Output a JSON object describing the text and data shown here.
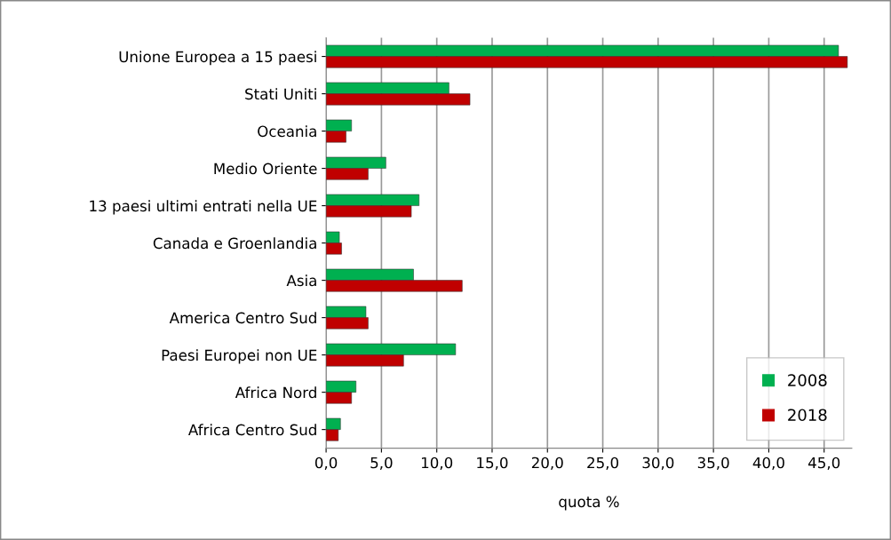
{
  "chart_data": {
    "type": "bar",
    "orientation": "horizontal",
    "xlabel": "quota %",
    "categories": [
      "Unione Europea a 15 paesi",
      "Stati Uniti",
      "Oceania",
      "Medio Oriente",
      "13 paesi ultimi entrati nella UE",
      "Canada e Groenlandia",
      "Asia",
      "America Centro Sud",
      "Paesi Europei non UE",
      "Africa Nord",
      "Africa Centro Sud"
    ],
    "series": [
      {
        "name": "2008",
        "color": "#00b050",
        "values": [
          46.3,
          11.1,
          2.3,
          5.4,
          8.4,
          1.2,
          7.9,
          3.6,
          11.7,
          2.7,
          1.3
        ]
      },
      {
        "name": "2018",
        "color": "#c00000",
        "values": [
          47.1,
          13.0,
          1.8,
          3.8,
          7.7,
          1.4,
          12.3,
          3.8,
          7.0,
          2.3,
          1.1
        ]
      }
    ],
    "xlim": [
      0,
      47.5
    ],
    "xticks": [
      {
        "value": 0,
        "label": "0,0"
      },
      {
        "value": 5,
        "label": "5,0"
      },
      {
        "value": 10,
        "label": "10,0"
      },
      {
        "value": 15,
        "label": "15,0"
      },
      {
        "value": 20,
        "label": "20,0"
      },
      {
        "value": 25,
        "label": "25,0"
      },
      {
        "value": 30,
        "label": "30,0"
      },
      {
        "value": 35,
        "label": "35,0"
      },
      {
        "value": 40,
        "label": "40,0"
      },
      {
        "value": 45,
        "label": "45,0"
      }
    ],
    "grid": "x",
    "legend": "bottom right"
  }
}
